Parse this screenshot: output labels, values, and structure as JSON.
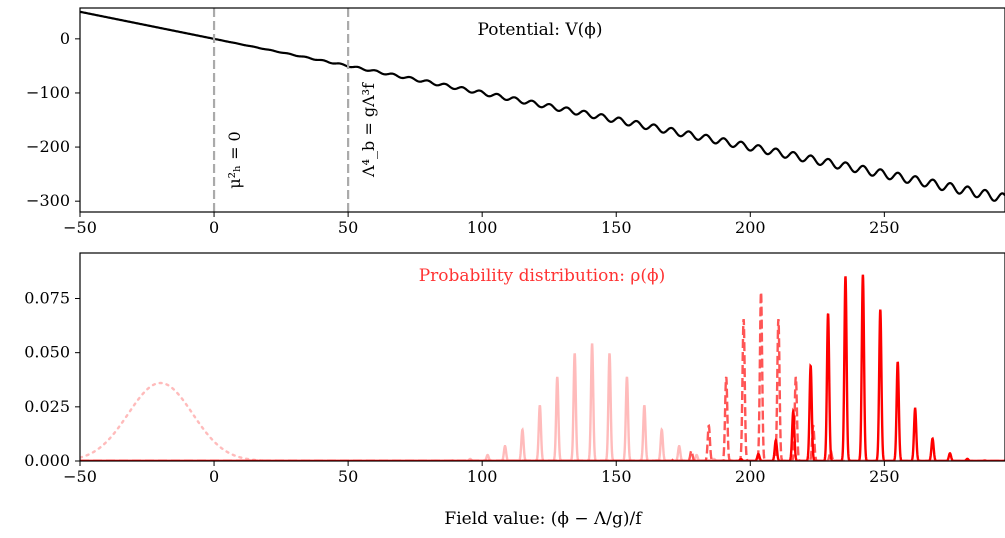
{
  "chart_data": [
    {
      "type": "line",
      "title": "Potential: V(ϕ)",
      "xlabel": "",
      "ylabel": "",
      "xlim": [
        -50,
        295
      ],
      "ylim": [
        -320,
        57
      ],
      "xticks": [
        "−50",
        "0",
        "50",
        "100",
        "150",
        "200",
        "250"
      ],
      "xtick_values": [
        -50,
        0,
        50,
        100,
        150,
        200,
        250
      ],
      "yticks": [
        "0",
        "−100",
        "−200",
        "−300"
      ],
      "ytick_values": [
        0,
        -100,
        -200,
        -300
      ],
      "grid": false,
      "series": [
        {
          "color": "#000000",
          "style": "solid",
          "x": [
            -50,
            -25,
            0,
            25,
            50,
            75,
            100,
            125,
            150,
            175,
            200,
            225,
            250,
            275,
            295
          ],
          "y": [
            50,
            25,
            0,
            -25,
            -50,
            -75,
            -100,
            -125,
            -150,
            -175,
            -200,
            -225,
            -250,
            -275,
            -295
          ],
          "ripple_amplitude": [
            0,
            0,
            0,
            0.5,
            1.5,
            2.5,
            3.5,
            4.5,
            5.5,
            6,
            6.5,
            7,
            7.5,
            8,
            8.5
          ],
          "ripple_period": 6.5
        }
      ],
      "vlines": [
        {
          "x": 0,
          "label": "μ²ₕ = 0",
          "color": "#aaaaaa",
          "style": "dashed"
        },
        {
          "x": 50,
          "label": "Λ⁴_b = gΛ³f",
          "color": "#aaaaaa",
          "style": "dashed"
        }
      ]
    },
    {
      "type": "line",
      "title": "Probability distribution: ρ(ϕ)",
      "title_color": "#ff3333",
      "xlabel": "Field value: (ϕ − Λ/g)/f",
      "ylabel": "",
      "xlim": [
        -50,
        295
      ],
      "ylim": [
        0,
        0.096
      ],
      "xticks": [
        "−50",
        "0",
        "50",
        "100",
        "150",
        "200",
        "250"
      ],
      "xtick_values": [
        -50,
        0,
        50,
        100,
        150,
        200,
        250
      ],
      "yticks": [
        "0.000",
        "0.025",
        "0.050",
        "0.075"
      ],
      "ytick_values": [
        0,
        0.025,
        0.05,
        0.075
      ],
      "grid": false,
      "series": [
        {
          "color": "#ffbbbb",
          "style": "dotted",
          "peak_center": -20,
          "peak_height": 0.036,
          "envelope_width": 12,
          "comb_period": 0
        },
        {
          "color": "#ffbbbb",
          "style": "solid",
          "peak_center": 141,
          "peak_height": 0.054,
          "envelope_width": 16,
          "comb_period": 6.5,
          "comb_phase": 141
        },
        {
          "color": "#ff5555",
          "style": "dashed",
          "peak_center": 204,
          "peak_height": 0.078,
          "envelope_width": 11,
          "comb_period": 6.5,
          "comb_phase": 204
        },
        {
          "color": "#ff0000",
          "style": "solid",
          "peak_center": 239,
          "peak_height": 0.088,
          "envelope_width": 14,
          "comb_period": 6.5,
          "comb_phase": 242
        }
      ]
    }
  ]
}
